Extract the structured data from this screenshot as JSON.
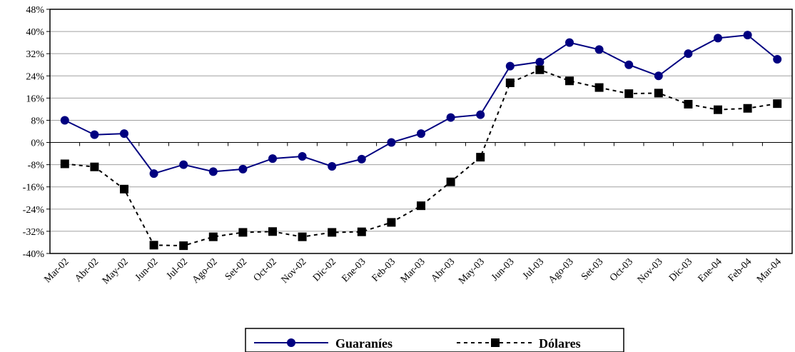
{
  "chart_data": {
    "type": "line",
    "categories": [
      "Mar-02",
      "Abr-02",
      "May-02",
      "Jun-02",
      "Jul-02",
      "Ago-02",
      "Set-02",
      "Oct-02",
      "Nov-02",
      "Dic-02",
      "Ene-03",
      "Feb-03",
      "Mar-03",
      "Abr-03",
      "May-03",
      "Jun-03",
      "Jul-03",
      "Ago-03",
      "Set-03",
      "Oct-03",
      "Nov-03",
      "Dic-03",
      "Ene-04",
      "Feb-04",
      "Mar-04"
    ],
    "series": [
      {
        "name": "Guaraníes",
        "color": "#000080",
        "marker": "circle",
        "line_style": "solid",
        "values": [
          8,
          2.8,
          3.2,
          -11.2,
          -8,
          -10.5,
          -9.6,
          -5.8,
          -5,
          -8.6,
          -6,
          0,
          3.2,
          9,
          10,
          27.5,
          29,
          36,
          33.5,
          28,
          24,
          32,
          37.6,
          38.7,
          30
        ]
      },
      {
        "name": "Dólares",
        "color": "#000000",
        "marker": "square",
        "line_style": "dashed",
        "values": [
          -7.7,
          -8.8,
          -16.8,
          -37,
          -37.2,
          -34,
          -32.4,
          -32.1,
          -34,
          -32.4,
          -32.2,
          -28.8,
          -22.8,
          -14.2,
          -5.3,
          21.5,
          26.2,
          22.2,
          19.8,
          17.6,
          17.8,
          13.8,
          11.8,
          12.3,
          14
        ]
      }
    ],
    "y_ticks": [
      "48%",
      "40%",
      "32%",
      "24%",
      "16%",
      "8%",
      "0%",
      "-8%",
      "-16%",
      "-24%",
      "-32%",
      "-40%"
    ],
    "ylim": [
      -40,
      48
    ],
    "grid": true,
    "legend_position": "bottom-center"
  }
}
